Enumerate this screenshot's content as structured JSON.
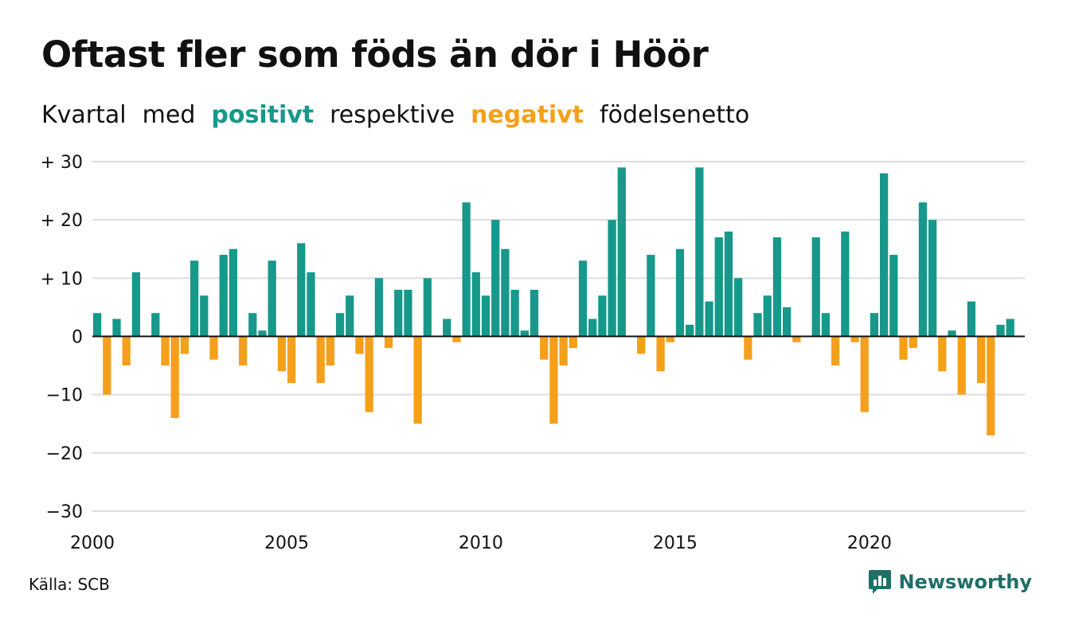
{
  "title": "Oftast fler som föds än dör i Höör",
  "subtitle": {
    "part1": "Kvartal",
    "part2": "med",
    "positive": "positivt",
    "part3": "respektive",
    "negative": "negativt",
    "part4": "födelsenetto"
  },
  "source": "Källa: SCB",
  "brand": {
    "name": "Newsworthy",
    "icon": "bar-chart-speech-bubble-icon"
  },
  "colors": {
    "positive": "#16988a",
    "negative": "#f5a01a",
    "grid": "#dddddd",
    "brand": "#1f6f66"
  },
  "chart_data": {
    "type": "bar",
    "xlabel": "",
    "ylabel": "",
    "ylim": [
      -30,
      30
    ],
    "yticks": [
      30,
      20,
      10,
      0,
      -10,
      -20,
      -30
    ],
    "ytick_labels": [
      "+ 30",
      "+ 20",
      "+ 10",
      "0",
      "−10",
      "−20",
      "−30"
    ],
    "xticks": [
      2000,
      2005,
      2010,
      2015,
      2020
    ],
    "xtick_labels": [
      "2000",
      "2005",
      "2010",
      "2015",
      "2020"
    ],
    "grid": true,
    "start": "2000 Q1",
    "categories": [
      "2000 Q1",
      "2000 Q2",
      "2000 Q3",
      "2000 Q4",
      "2001 Q1",
      "2001 Q2",
      "2001 Q3",
      "2001 Q4",
      "2002 Q1",
      "2002 Q2",
      "2002 Q3",
      "2002 Q4",
      "2003 Q1",
      "2003 Q2",
      "2003 Q3",
      "2003 Q4",
      "2004 Q1",
      "2004 Q2",
      "2004 Q3",
      "2004 Q4",
      "2005 Q1",
      "2005 Q2",
      "2005 Q3",
      "2005 Q4",
      "2006 Q1",
      "2006 Q2",
      "2006 Q3",
      "2006 Q4",
      "2007 Q1",
      "2007 Q2",
      "2007 Q3",
      "2007 Q4",
      "2008 Q1",
      "2008 Q2",
      "2008 Q3",
      "2008 Q4",
      "2009 Q1",
      "2009 Q2",
      "2009 Q3",
      "2009 Q4",
      "2010 Q1",
      "2010 Q2",
      "2010 Q3",
      "2010 Q4",
      "2011 Q1",
      "2011 Q2",
      "2011 Q3",
      "2011 Q4",
      "2012 Q1",
      "2012 Q2",
      "2012 Q3",
      "2012 Q4",
      "2013 Q1",
      "2013 Q2",
      "2013 Q3",
      "2013 Q4",
      "2014 Q1",
      "2014 Q2",
      "2014 Q3",
      "2014 Q4",
      "2015 Q1",
      "2015 Q2",
      "2015 Q3",
      "2015 Q4",
      "2016 Q1",
      "2016 Q2",
      "2016 Q3",
      "2016 Q4",
      "2017 Q1",
      "2017 Q2",
      "2017 Q3",
      "2017 Q4",
      "2018 Q1",
      "2018 Q2",
      "2018 Q3",
      "2018 Q4",
      "2019 Q1",
      "2019 Q2",
      "2019 Q3",
      "2019 Q4",
      "2020 Q1",
      "2020 Q2",
      "2020 Q3",
      "2020 Q4",
      "2021 Q1",
      "2021 Q2",
      "2021 Q3",
      "2021 Q4",
      "2022 Q1",
      "2022 Q2",
      "2022 Q3",
      "2022 Q4",
      "2023 Q1",
      "2023 Q2",
      "2023 Q3",
      "2023 Q4"
    ],
    "values": [
      4,
      -10,
      3,
      -5,
      11,
      0,
      4,
      -5,
      -14,
      -3,
      13,
      7,
      -4,
      14,
      15,
      -5,
      4,
      1,
      13,
      -6,
      -8,
      16,
      11,
      -8,
      -5,
      4,
      7,
      -3,
      -13,
      10,
      -2,
      8,
      8,
      -15,
      10,
      0,
      3,
      -1,
      23,
      11,
      7,
      20,
      15,
      8,
      1,
      8,
      -4,
      -15,
      -5,
      -2,
      13,
      3,
      7,
      20,
      29,
      0,
      -3,
      14,
      -6,
      -1,
      15,
      2,
      29,
      6,
      17,
      18,
      10,
      -4,
      4,
      7,
      17,
      5,
      -1,
      0,
      17,
      4,
      -5,
      18,
      -1,
      -13,
      4,
      28,
      14,
      -4,
      -2,
      23,
      20,
      -6,
      1,
      -10,
      6,
      -8,
      -17,
      2,
      3,
      0
    ]
  }
}
